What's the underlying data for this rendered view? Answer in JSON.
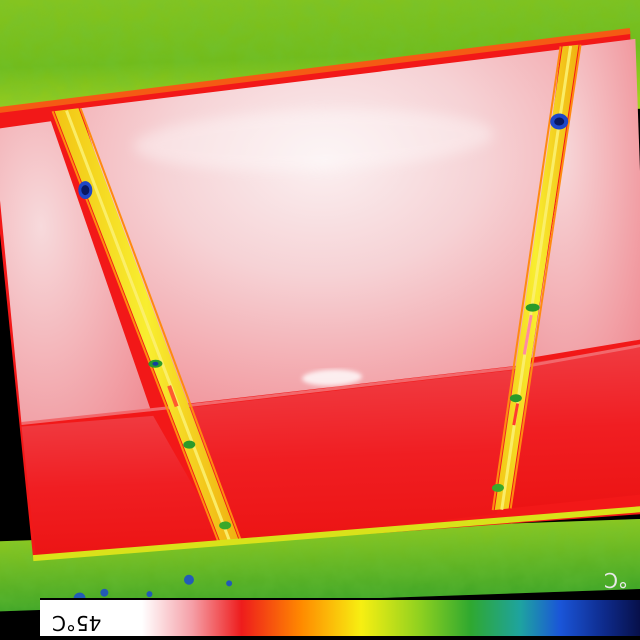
{
  "scale": {
    "max_label": "45°C",
    "min_label": "°C"
  },
  "palette": {
    "hot_white": "#f8eef0",
    "warm_pink": "#f5c2c6",
    "red": "#f01818",
    "orange": "#ff8800",
    "yellow": "#f5ea10",
    "green": "#40b020",
    "lime": "#a8d820",
    "blue": "#1a4cd0",
    "navy": "#0b2070",
    "background": "#000000"
  }
}
